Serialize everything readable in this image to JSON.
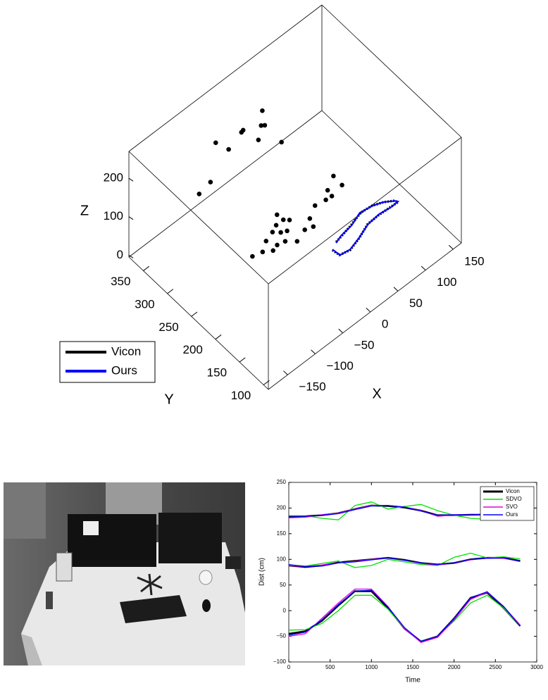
{
  "chart_data": [
    {
      "type": "scatter3d",
      "xlabel": "X",
      "ylabel": "Y",
      "zlabel": "Z",
      "xlim": [
        -185,
        165
      ],
      "ylim": [
        90,
        380
      ],
      "zlim": [
        -5,
        270
      ],
      "xticks": [
        {
          "value": -150,
          "label": "−150"
        },
        {
          "value": -100,
          "label": "−100"
        },
        {
          "value": -50,
          "label": "−50"
        },
        0,
        50,
        100,
        150
      ],
      "yticks": [
        100,
        150,
        200,
        250,
        300,
        350
      ],
      "zticks": [
        0,
        100,
        200
      ],
      "points": {
        "color": "#000000",
        "x": [
          -70,
          -55,
          -43,
          -40,
          -33,
          -21,
          -24,
          -16,
          -8,
          -13,
          0,
          6,
          -1,
          -9,
          11,
          23,
          28,
          47,
          64,
          76,
          97,
          96,
          74,
          9,
          -8,
          -4,
          -26,
          -31,
          -35,
          -66,
          -72,
          -119,
          -143,
          -5
        ],
        "y": [
          255,
          251,
          243,
          261,
          246,
          243,
          266,
          258,
          254,
          271,
          271,
          265,
          283,
          232,
          239,
          235,
          248,
          259,
          256,
          266,
          278,
          259,
          255,
          325,
          308,
          305,
          293,
          319,
          318,
          309,
          329,
          286,
          282,
          269
        ],
        "z": [
          20,
          20,
          20,
          20,
          20,
          20,
          20,
          20,
          20,
          20,
          20,
          20,
          20,
          20,
          20,
          20,
          20,
          20,
          20,
          20,
          20,
          20,
          20,
          230,
          230,
          230,
          230,
          230,
          230,
          230,
          230,
          230,
          230,
          230
        ]
      },
      "series": [
        {
          "name": "Vicon",
          "color": "#000000",
          "x": [
            -7.1,
            -5.2,
            10.7,
            32.6,
            56.1,
            77.2,
            95.3,
            109.8,
            107.8,
            95.6,
            79.8,
            61.0,
            37.6,
            17.2,
            3.3
          ],
          "y": [
            160.7,
            148.2,
            144.4,
            150.5,
            159.8,
            160.6,
            159.5,
            158.5,
            163.4,
            171.5,
            178.2,
            180.1,
            173.7,
            169.4,
            166.7
          ],
          "z": [
            80,
            80,
            80,
            80,
            80,
            80,
            80,
            80,
            80,
            80,
            80,
            80,
            80,
            80,
            80
          ]
        },
        {
          "name": "Ours",
          "color": "#0000ff",
          "x": [
            -6.5,
            -4.8,
            11.5,
            33.4,
            55.2,
            78.0,
            96.1,
            110.5,
            108.3,
            94.9,
            80.5,
            60.1,
            38.3,
            16.5,
            4.0
          ],
          "y": [
            161.5,
            147.5,
            145.1,
            151.2,
            159.0,
            161.3,
            158.8,
            159.2,
            162.6,
            172.2,
            177.4,
            180.9,
            172.9,
            170.2,
            165.9
          ],
          "z": [
            80,
            80,
            80,
            80,
            80,
            80,
            80,
            80,
            80,
            80,
            80,
            80,
            80,
            80,
            80
          ]
        }
      ],
      "legend": "lower left"
    },
    {
      "type": "line",
      "xlabel": "Time",
      "ylabel": "Dist (cm)",
      "x": [
        0,
        200,
        400,
        600,
        800,
        1000,
        1200,
        1400,
        1600,
        1800,
        2000,
        2200,
        2400,
        2600,
        2800
      ],
      "xlim": [
        0,
        3000
      ],
      "ylim": [
        -100,
        250
      ],
      "xticks": [
        0,
        500,
        1000,
        1500,
        2000,
        2500,
        3000
      ],
      "yticks": [
        {
          "value": -100,
          "label": "−100"
        },
        {
          "value": -50,
          "label": "−50"
        },
        0,
        50,
        100,
        150,
        200,
        250
      ],
      "series": [
        {
          "name": "Vicon",
          "color": "#000000",
          "values": [
            [
              183,
              184,
              186,
              190,
              198,
              205,
              204,
              201,
              195,
              186,
              186,
              187,
              187,
              190,
              200
            ],
            [
              88,
              85,
              88,
              94,
              97,
              100,
              103,
              99,
              93,
              90,
              93,
              100,
              103,
              103,
              97
            ],
            [
              -45,
              -40,
              -20,
              10,
              38,
              38,
              5,
              -35,
              -60,
              -50,
              -15,
              25,
              35,
              5,
              -30
            ]
          ]
        },
        {
          "name": "SDVO",
          "color": "#00e000",
          "values": [
            [
              185,
              185,
              180,
              177,
              205,
              212,
              198,
              203,
              207,
              195,
              186,
              180,
              178,
              182,
              195
            ],
            [
              89,
              87,
              92,
              97,
              84,
              88,
              100,
              95,
              90,
              88,
              104,
              112,
              103,
              105,
              101
            ],
            [
              -38,
              -37,
              -25,
              0,
              30,
              30,
              3,
              -35,
              -60,
              -50,
              -20,
              15,
              30,
              5,
              -30
            ]
          ]
        },
        {
          "name": "SVO",
          "color": "#e000e0",
          "values": [
            [
              181,
              182,
              187,
              190,
              198,
              205,
              205,
              202,
              195,
              184,
              186,
              187,
              186,
              188,
              198
            ],
            [
              88,
              86,
              89,
              93,
              96,
              100,
              103,
              98,
              92,
              89,
              93,
              99,
              103,
              102,
              96
            ],
            [
              -50,
              -45,
              -15,
              15,
              42,
              42,
              8,
              -35,
              -62,
              -52,
              -18,
              22,
              36,
              8,
              -28
            ]
          ]
        },
        {
          "name": "Ours",
          "color": "#0000ff",
          "values": [
            [
              184,
              184,
              186,
              189,
              197,
              204,
              205,
              202,
              194,
              186,
              187,
              187,
              188,
              190,
              200
            ],
            [
              90,
              86,
              87,
              93,
              95,
              99,
              103,
              98,
              93,
              90,
              93,
              100,
              102,
              103,
              96
            ],
            [
              -48,
              -42,
              -18,
              12,
              38,
              40,
              7,
              -33,
              -60,
              -50,
              -15,
              25,
              37,
              8,
              -30
            ]
          ]
        }
      ],
      "legend": "upper right"
    }
  ]
}
